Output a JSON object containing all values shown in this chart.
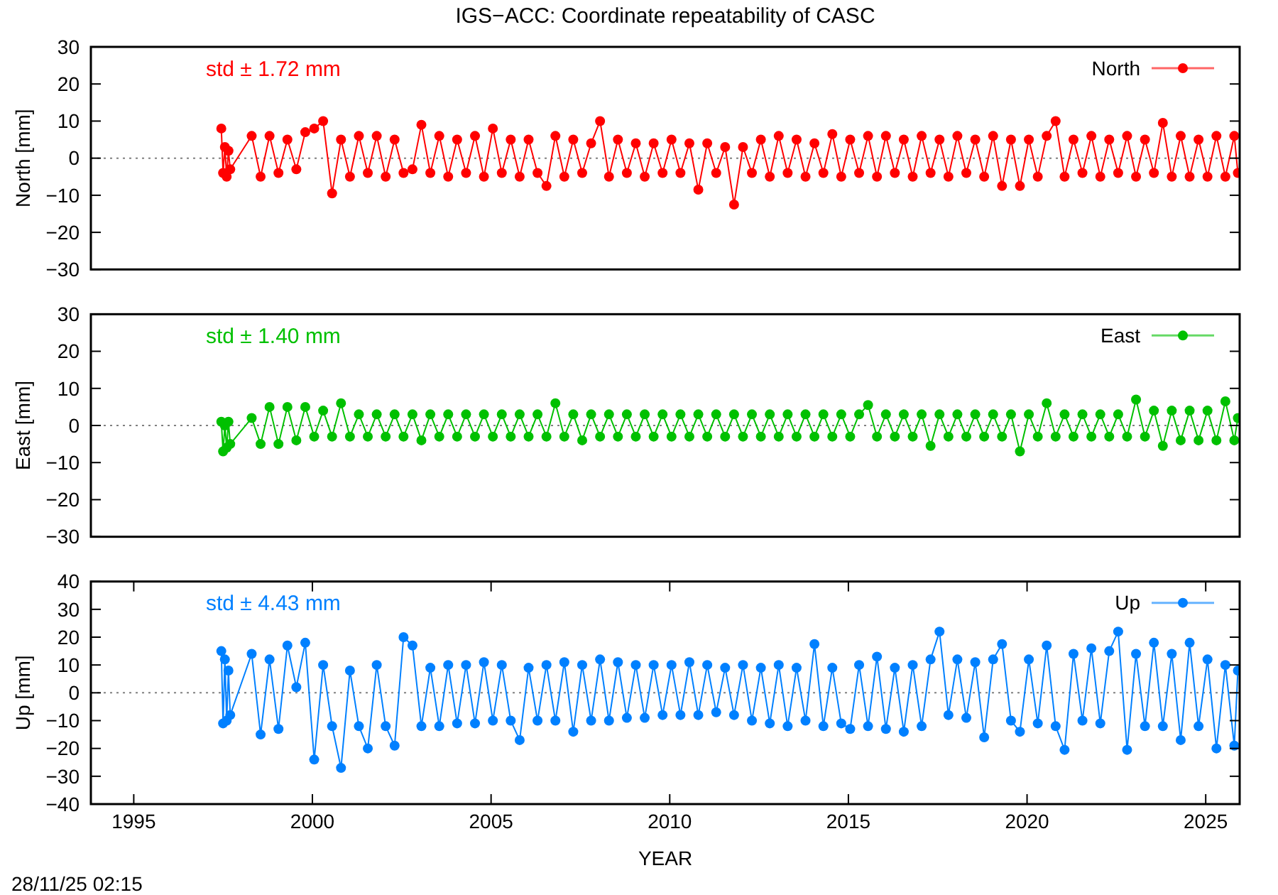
{
  "chart_data": [
    {
      "type": "line",
      "title": "IGS−ACC: Coordinate repeatability of CASC",
      "ylabel": "North [mm]",
      "annotations": [
        "std ± 1.72 mm"
      ],
      "legend": "top right",
      "marker": "circle",
      "tick_labels": "y",
      "xlim": [
        1993.8,
        2025.95
      ],
      "ylim": [
        -30,
        30
      ],
      "yticks": [
        -30,
        -20,
        -10,
        0,
        10,
        20,
        30
      ],
      "ref_lines": [
        {
          "axis": "y",
          "value": 0,
          "color": "#808080",
          "line_style": "dotted"
        }
      ],
      "x": [
        1997.45,
        1997.5,
        1997.55,
        1997.6,
        1997.65,
        1997.7,
        1998.3,
        1998.55,
        1998.8,
        1999.05,
        1999.3,
        1999.55,
        1999.8,
        2000.05,
        2000.3,
        2000.55,
        2000.8,
        2001.05,
        2001.3,
        2001.55,
        2001.8,
        2002.05,
        2002.3,
        2002.55,
        2002.8,
        2003.05,
        2003.3,
        2003.55,
        2003.8,
        2004.05,
        2004.3,
        2004.55,
        2004.8,
        2005.05,
        2005.3,
        2005.55,
        2005.8,
        2006.05,
        2006.3,
        2006.55,
        2006.8,
        2007.05,
        2007.3,
        2007.55,
        2007.8,
        2008.05,
        2008.3,
        2008.55,
        2008.8,
        2009.05,
        2009.3,
        2009.55,
        2009.8,
        2010.05,
        2010.3,
        2010.55,
        2010.8,
        2011.05,
        2011.3,
        2011.55,
        2011.8,
        2012.05,
        2012.3,
        2012.55,
        2012.8,
        2013.05,
        2013.3,
        2013.55,
        2013.8,
        2014.05,
        2014.3,
        2014.55,
        2014.8,
        2015.05,
        2015.3,
        2015.55,
        2015.8,
        2016.05,
        2016.3,
        2016.55,
        2016.8,
        2017.05,
        2017.3,
        2017.55,
        2017.8,
        2018.05,
        2018.3,
        2018.55,
        2018.8,
        2019.05,
        2019.3,
        2019.55,
        2019.8,
        2020.05,
        2020.3,
        2020.55,
        2020.8,
        2021.05,
        2021.3,
        2021.55,
        2021.8,
        2022.05,
        2022.3,
        2022.55,
        2022.8,
        2023.05,
        2023.3,
        2023.55,
        2023.8,
        2024.05,
        2024.3,
        2024.55,
        2024.8,
        2025.05,
        2025.3,
        2025.55,
        2025.8,
        2025.9
      ],
      "series": [
        {
          "name": "North",
          "color": "#ff0000",
          "values": [
            8,
            -4,
            3,
            -5,
            2,
            -3,
            6,
            -5,
            6,
            -4,
            5,
            -3,
            7,
            8,
            10,
            -9.5,
            5,
            -5,
            6,
            -4,
            6,
            -5,
            5,
            -4,
            -3,
            9,
            -4,
            6,
            -5,
            5,
            -4,
            6,
            -5,
            8,
            -4,
            5,
            -5,
            5,
            -4,
            -7.5,
            6,
            -5,
            5,
            -4,
            4,
            10,
            -5,
            5,
            -4,
            4,
            -5,
            4,
            -4,
            5,
            -4,
            4,
            -8.5,
            4,
            -4,
            3,
            -12.5,
            3,
            -4,
            5,
            -5,
            6,
            -4,
            5,
            -5,
            4,
            -4,
            6.5,
            -5,
            5,
            -4,
            6,
            -5,
            6,
            -4,
            5,
            -5,
            6,
            -4,
            5,
            -5,
            6,
            -4,
            5,
            -5,
            6,
            -7.5,
            5,
            -7.5,
            5,
            -5,
            6,
            10,
            -5,
            5,
            -4,
            6,
            -5,
            5,
            -4,
            6,
            -5,
            5,
            -4,
            9.5,
            -5,
            6,
            -5,
            5,
            -5,
            6,
            -5,
            6,
            -4
          ]
        }
      ]
    },
    {
      "type": "line",
      "ylabel": "East [mm]",
      "annotations": [
        "std ± 1.40 mm"
      ],
      "legend": "top right",
      "marker": "circle",
      "tick_labels": "y",
      "xlim": [
        1993.8,
        2025.95
      ],
      "ylim": [
        -30,
        30
      ],
      "yticks": [
        -30,
        -20,
        -10,
        0,
        10,
        20,
        30
      ],
      "ref_lines": [
        {
          "axis": "y",
          "value": 0,
          "color": "#808080",
          "line_style": "dotted"
        }
      ],
      "x": [
        1997.45,
        1997.5,
        1997.55,
        1997.6,
        1997.65,
        1997.7,
        1998.3,
        1998.55,
        1998.8,
        1999.05,
        1999.3,
        1999.55,
        1999.8,
        2000.05,
        2000.3,
        2000.55,
        2000.8,
        2001.05,
        2001.3,
        2001.55,
        2001.8,
        2002.05,
        2002.3,
        2002.55,
        2002.8,
        2003.05,
        2003.3,
        2003.55,
        2003.8,
        2004.05,
        2004.3,
        2004.55,
        2004.8,
        2005.05,
        2005.3,
        2005.55,
        2005.8,
        2006.05,
        2006.3,
        2006.55,
        2006.8,
        2007.05,
        2007.3,
        2007.55,
        2007.8,
        2008.05,
        2008.3,
        2008.55,
        2008.8,
        2009.05,
        2009.3,
        2009.55,
        2009.8,
        2010.05,
        2010.3,
        2010.55,
        2010.8,
        2011.05,
        2011.3,
        2011.55,
        2011.8,
        2012.05,
        2012.3,
        2012.55,
        2012.8,
        2013.05,
        2013.3,
        2013.55,
        2013.8,
        2014.05,
        2014.3,
        2014.55,
        2014.8,
        2015.05,
        2015.3,
        2015.55,
        2015.8,
        2016.05,
        2016.3,
        2016.55,
        2016.8,
        2017.05,
        2017.3,
        2017.55,
        2017.8,
        2018.05,
        2018.3,
        2018.55,
        2018.8,
        2019.05,
        2019.3,
        2019.55,
        2019.8,
        2020.05,
        2020.3,
        2020.55,
        2020.8,
        2021.05,
        2021.3,
        2021.55,
        2021.8,
        2022.05,
        2022.3,
        2022.55,
        2022.8,
        2023.05,
        2023.3,
        2023.55,
        2023.8,
        2024.05,
        2024.3,
        2024.55,
        2024.8,
        2025.05,
        2025.3,
        2025.55,
        2025.8,
        2025.9
      ],
      "series": [
        {
          "name": "East",
          "color": "#00c000",
          "values": [
            1,
            -7,
            0,
            -6,
            1,
            -5,
            2,
            -5,
            5,
            -5,
            5,
            -4,
            5,
            -3,
            4,
            -3,
            6,
            -3,
            3,
            -3,
            3,
            -3,
            3,
            -3,
            3,
            -4,
            3,
            -3,
            3,
            -3,
            3,
            -3,
            3,
            -3,
            3,
            -3,
            3,
            -3,
            3,
            -3,
            6,
            -3,
            3,
            -4,
            3,
            -3,
            3,
            -3,
            3,
            -3,
            3,
            -3,
            3,
            -3,
            3,
            -3,
            3,
            -3,
            3,
            -3,
            3,
            -3,
            3,
            -3,
            3,
            -3,
            3,
            -3,
            3,
            -3,
            3,
            -3,
            3,
            -3,
            3,
            5.5,
            -3,
            3,
            -3,
            3,
            -3,
            3,
            -5.5,
            3,
            -3,
            3,
            -3,
            3,
            -3,
            3,
            -3,
            3,
            -7,
            3,
            -3,
            6,
            -3,
            3,
            -3,
            3,
            -3,
            3,
            -3,
            3,
            -3,
            7,
            -3,
            4,
            -5.5,
            4,
            -4,
            4,
            -4,
            4,
            -4,
            6.5,
            -4,
            2
          ]
        }
      ]
    },
    {
      "type": "line",
      "ylabel": "Up [mm]",
      "xlabel": "YEAR",
      "annotations": [
        "std ± 4.43 mm",
        "28/11/25 02:15"
      ],
      "legend": "top right",
      "marker": "circle",
      "xlim": [
        1993.8,
        2025.95
      ],
      "ylim": [
        -40,
        40
      ],
      "xticks": [
        1995,
        2000,
        2005,
        2010,
        2015,
        2020,
        2025
      ],
      "yticks": [
        -40,
        -30,
        -20,
        -10,
        0,
        10,
        20,
        30,
        40
      ],
      "ref_lines": [
        {
          "axis": "y",
          "value": 0,
          "color": "#808080",
          "line_style": "dotted"
        }
      ],
      "x": [
        1997.45,
        1997.5,
        1997.55,
        1997.6,
        1997.65,
        1997.7,
        1998.3,
        1998.55,
        1998.8,
        1999.05,
        1999.3,
        1999.55,
        1999.8,
        2000.05,
        2000.3,
        2000.55,
        2000.8,
        2001.05,
        2001.3,
        2001.55,
        2001.8,
        2002.05,
        2002.3,
        2002.55,
        2002.8,
        2003.05,
        2003.3,
        2003.55,
        2003.8,
        2004.05,
        2004.3,
        2004.55,
        2004.8,
        2005.05,
        2005.3,
        2005.55,
        2005.8,
        2006.05,
        2006.3,
        2006.55,
        2006.8,
        2007.05,
        2007.3,
        2007.55,
        2007.8,
        2008.05,
        2008.3,
        2008.55,
        2008.8,
        2009.05,
        2009.3,
        2009.55,
        2009.8,
        2010.05,
        2010.3,
        2010.55,
        2010.8,
        2011.05,
        2011.3,
        2011.55,
        2011.8,
        2012.05,
        2012.3,
        2012.55,
        2012.8,
        2013.05,
        2013.3,
        2013.55,
        2013.8,
        2014.05,
        2014.3,
        2014.55,
        2014.8,
        2015.05,
        2015.3,
        2015.55,
        2015.8,
        2016.05,
        2016.3,
        2016.55,
        2016.8,
        2017.05,
        2017.3,
        2017.55,
        2017.8,
        2018.05,
        2018.3,
        2018.55,
        2018.8,
        2019.05,
        2019.3,
        2019.55,
        2019.8,
        2020.05,
        2020.3,
        2020.55,
        2020.8,
        2021.05,
        2021.3,
        2021.55,
        2021.8,
        2022.05,
        2022.3,
        2022.55,
        2022.8,
        2023.05,
        2023.3,
        2023.55,
        2023.8,
        2024.05,
        2024.3,
        2024.55,
        2024.8,
        2025.05,
        2025.3,
        2025.55,
        2025.8,
        2025.9
      ],
      "series": [
        {
          "name": "Up",
          "color": "#0080ff",
          "values": [
            15,
            -11,
            12,
            -10,
            8,
            -8,
            14,
            -15,
            12,
            -13,
            17,
            2,
            18,
            -24,
            10,
            -12,
            -27,
            8,
            -12,
            -20,
            10,
            -12,
            -19,
            20,
            17,
            -12,
            9,
            -12,
            10,
            -11,
            10,
            -11,
            11,
            -10,
            10,
            -10,
            -17,
            9,
            -10,
            10,
            -10,
            11,
            -14,
            10,
            -10,
            12,
            -10,
            11,
            -9,
            10,
            -9,
            10,
            -8,
            10,
            -8,
            11,
            -8,
            10,
            -7,
            9,
            -8,
            10,
            -10,
            9,
            -11,
            10,
            -12,
            9,
            -10,
            17.5,
            -12,
            9,
            -11,
            -13,
            10,
            -12,
            13,
            -13,
            9,
            -14,
            10,
            -12,
            12,
            22,
            -8,
            12,
            -9,
            11,
            -16,
            12,
            17.5,
            -10,
            -14,
            12,
            -11,
            17,
            -12,
            -20.5,
            14,
            -10,
            16,
            -11,
            15,
            22,
            -20.5,
            14,
            -12,
            18,
            -12,
            14,
            -17,
            18,
            -12,
            12,
            -20,
            10,
            -19,
            8
          ]
        }
      ]
    }
  ]
}
